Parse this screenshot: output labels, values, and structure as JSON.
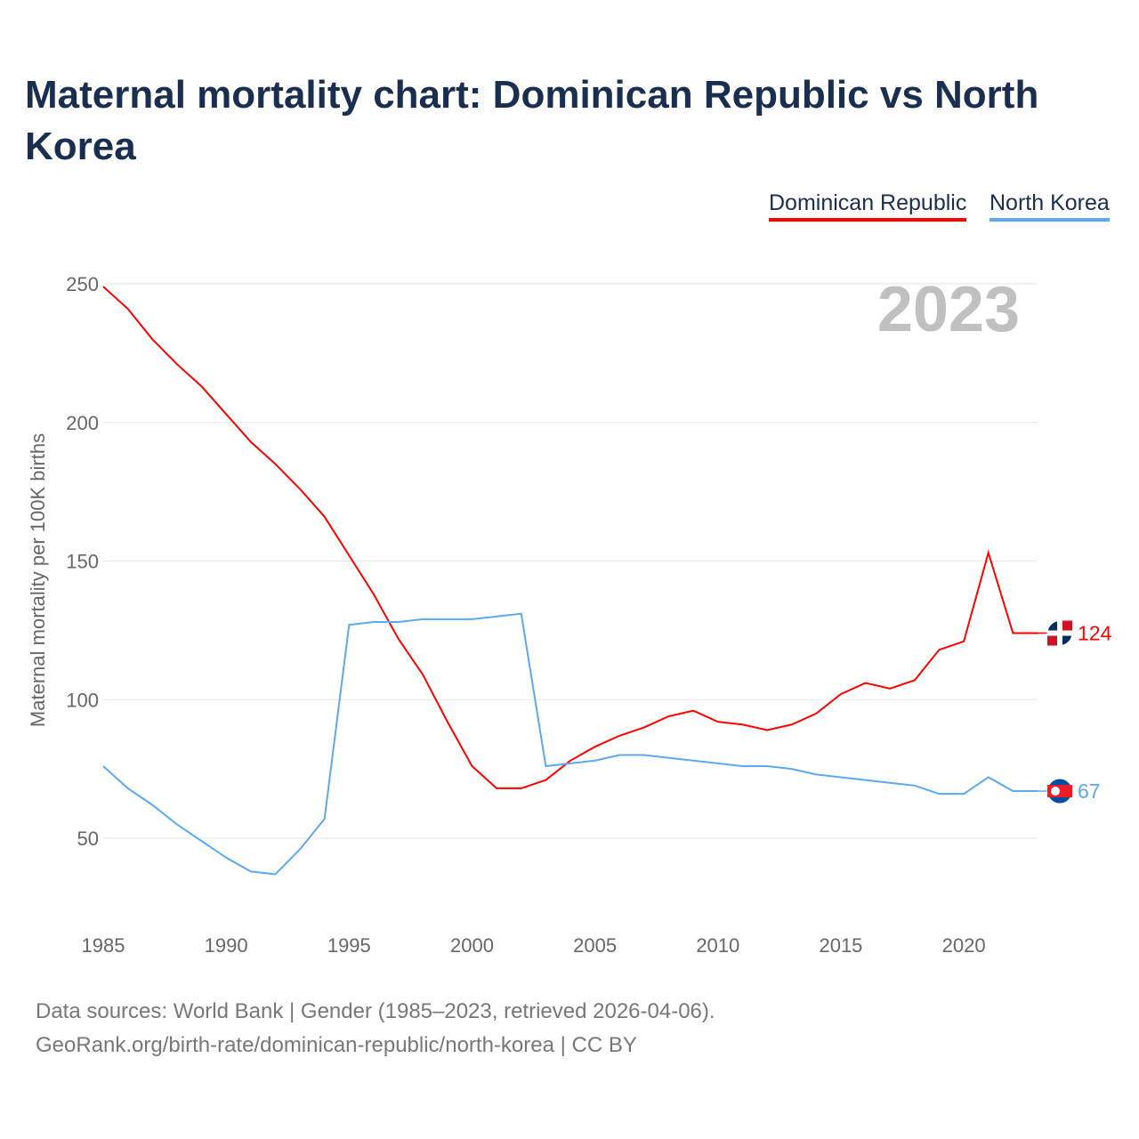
{
  "title": "Maternal mortality chart: Dominican Republic vs North Korea",
  "legend": [
    {
      "name": "Dominican Republic",
      "color": "#ff0000"
    },
    {
      "name": "North Korea",
      "color": "#5ea8ee"
    }
  ],
  "footer": {
    "line1": "Data sources: World Bank | Gender (1985–2023, retrieved 2026-04-06).",
    "line2": "GeoRank.org/birth-rate/dominican-republic/north-korea | CC BY"
  },
  "chart_data": {
    "type": "line",
    "title": "Maternal mortality chart: Dominican Republic vs North Korea",
    "ylabel": "Maternal mortality per 100K births",
    "xlabel": "",
    "year_label": "2023",
    "ylim": [
      21,
      250
    ],
    "xlim": [
      1985,
      2023
    ],
    "yticks": [
      50,
      100,
      150,
      200,
      250
    ],
    "xticks": [
      1985,
      1990,
      1995,
      2000,
      2005,
      2010,
      2015,
      2020
    ],
    "x": [
      1985,
      1986,
      1987,
      1988,
      1989,
      1990,
      1991,
      1992,
      1993,
      1994,
      1995,
      1996,
      1997,
      1998,
      1999,
      2000,
      2001,
      2002,
      2003,
      2004,
      2005,
      2006,
      2007,
      2008,
      2009,
      2010,
      2011,
      2012,
      2013,
      2014,
      2015,
      2016,
      2017,
      2018,
      2019,
      2020,
      2021,
      2022,
      2023
    ],
    "series": [
      {
        "name": "Dominican Republic",
        "color": "#ff0000",
        "end_label": "124",
        "values": [
          249,
          241,
          230,
          221,
          213,
          203,
          193,
          185,
          176,
          166,
          152,
          138,
          122,
          109,
          92,
          76,
          68,
          68,
          71,
          78,
          83,
          87,
          90,
          94,
          96,
          92,
          91,
          89,
          91,
          95,
          102,
          106,
          104,
          107,
          118,
          121,
          153,
          124,
          124
        ]
      },
      {
        "name": "North Korea",
        "color": "#5ea8ee",
        "end_label": "67",
        "values": [
          76,
          68,
          62,
          55,
          49,
          43,
          38,
          37,
          46,
          57,
          127,
          128,
          128,
          129,
          129,
          129,
          130,
          131,
          76,
          77,
          78,
          80,
          80,
          79,
          78,
          77,
          76,
          76,
          75,
          73,
          72,
          71,
          70,
          69,
          66,
          66,
          72,
          67,
          67
        ]
      }
    ]
  }
}
